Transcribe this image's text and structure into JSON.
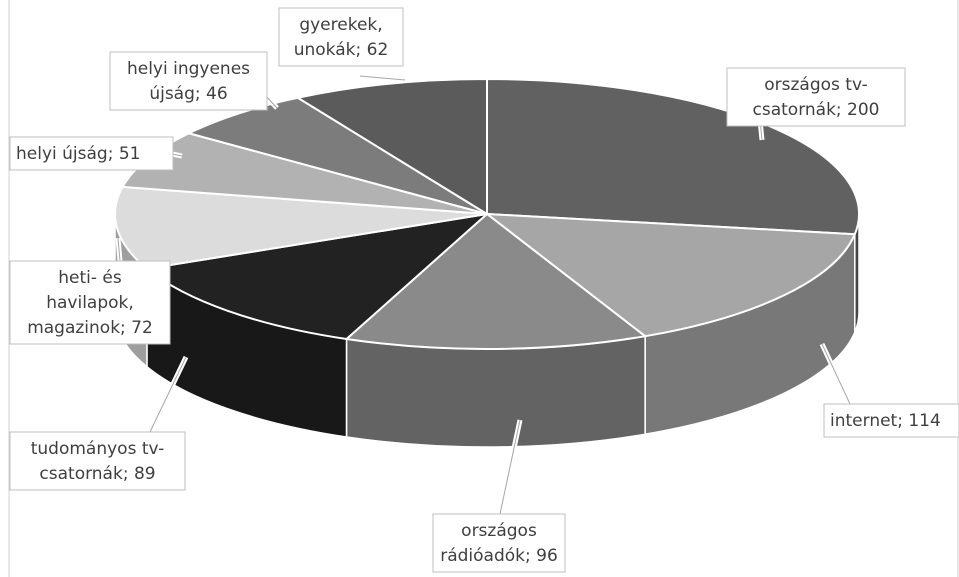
{
  "chart_data": {
    "type": "pie",
    "variant": "3d-exploded-none",
    "title": "",
    "slices": [
      {
        "category": "országos tv-\ncsatornák",
        "value": 200,
        "label": "országos tv-\ncsatornák; 200",
        "color": "#616161"
      },
      {
        "category": "internet",
        "value": 114,
        "label": "internet; 114",
        "color": "#a6a6a6"
      },
      {
        "category": "országos\nrádióadók",
        "value": 96,
        "label": "országos\nrádióadók; 96",
        "color": "#8a8a8a"
      },
      {
        "category": "tudományos tv-\ncsatornák",
        "value": 89,
        "label": "tudományos tv-\ncsatornák; 89",
        "color": "#222222"
      },
      {
        "category": "heti- és\nhavilapok,\nmagazinok",
        "value": 72,
        "label": "heti- és\nhavilapok,\nmagazinok; 72",
        "color": "#dcdcdc"
      },
      {
        "category": "helyi újság",
        "value": 51,
        "label": "helyi újság; 51",
        "color": "#b2b2b2"
      },
      {
        "category": "helyi ingyenes\nújság",
        "value": 46,
        "label": "helyi ingyenes\nújság; 46",
        "color": "#7c7c7c"
      },
      {
        "category": "gyerekek,\nunokák",
        "value": 62,
        "label": "gyerekek,\nunokák; 62",
        "color": "#5b5b5b"
      }
    ],
    "grid": false,
    "legend": "none"
  }
}
